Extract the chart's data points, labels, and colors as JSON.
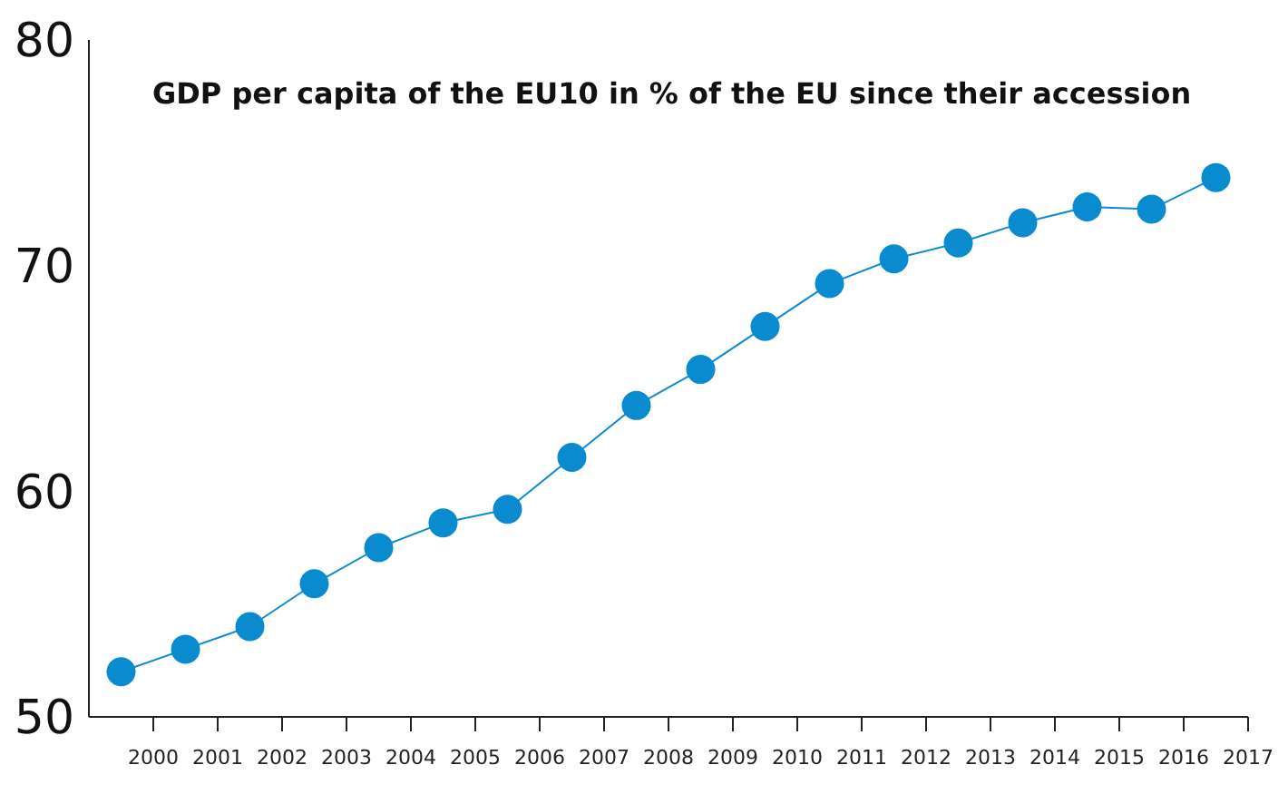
{
  "chart_data": {
    "type": "line",
    "title": "GDP per capita of the EU10 in % of the EU since their accession",
    "x": [
      1999.5,
      2000.5,
      2001.5,
      2002.5,
      2003.5,
      2004.5,
      2005.5,
      2006.5,
      2007.5,
      2008.5,
      2009.5,
      2010.5,
      2011.5,
      2012.5,
      2013.5,
      2014.5,
      2015.5,
      2016.5
    ],
    "series": [
      {
        "color": "#0a8bd0",
        "values": [
          52.0,
          53.0,
          54.0,
          55.9,
          57.5,
          58.6,
          59.2,
          61.5,
          63.8,
          65.4,
          67.3,
          69.2,
          70.3,
          71.0,
          71.9,
          72.6,
          72.5,
          73.9
        ]
      }
    ],
    "xlim": [
      1999,
      2017
    ],
    "xticks": [
      2000,
      2001,
      2002,
      2003,
      2004,
      2005,
      2006,
      2007,
      2008,
      2009,
      2010,
      2011,
      2012,
      2013,
      2014,
      2015,
      2016,
      2017
    ],
    "ylim": [
      50,
      80
    ],
    "yticks": [
      50,
      60,
      70,
      80
    ],
    "marker": "circle",
    "grid": false
  }
}
